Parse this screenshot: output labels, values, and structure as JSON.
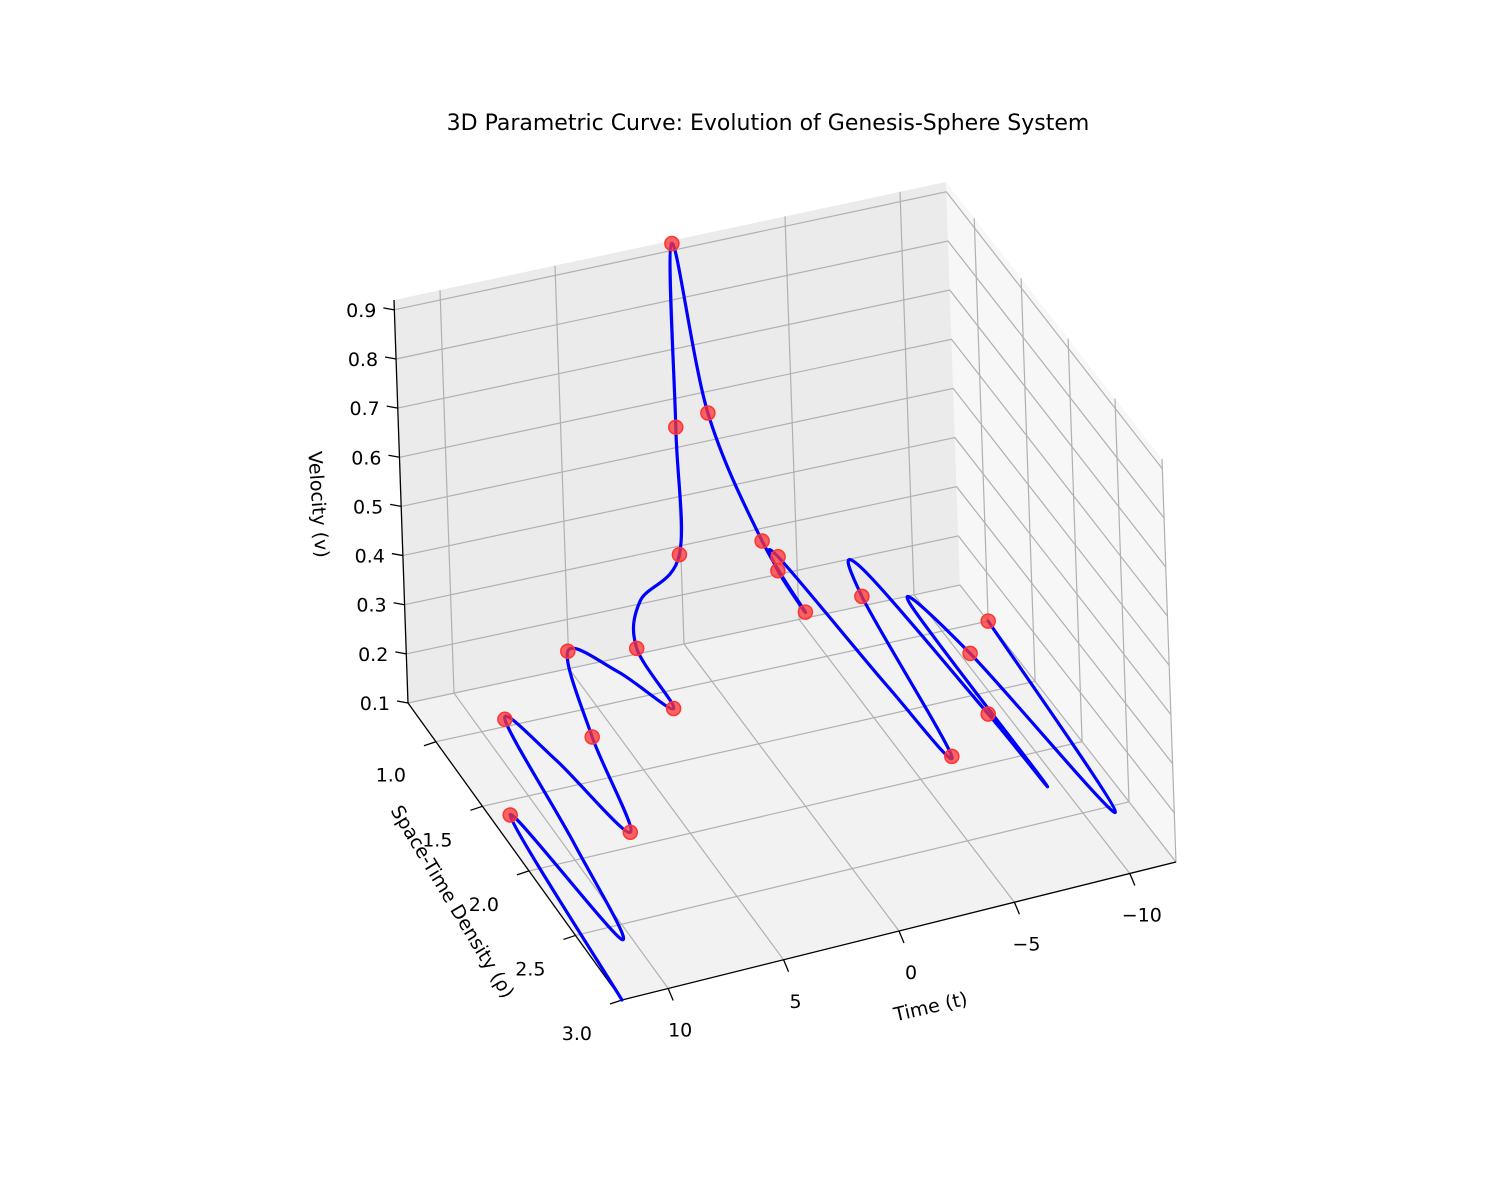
{
  "chart_data": {
    "type": "line3d",
    "title": "3D Parametric Curve: Evolution of Genesis-Sphere System",
    "xlabel": "Time (t)",
    "ylabel": "Space-Time Density (ρ)",
    "zlabel": "Velocity (v)",
    "xlim": [
      -12,
      12
    ],
    "ylim": [
      0.7,
      3.0
    ],
    "zlim": [
      0.1,
      0.92
    ],
    "x_ticks": [
      {
        "value": -10,
        "label": "−10"
      },
      {
        "value": -5,
        "label": "−5"
      },
      {
        "value": 0,
        "label": "0"
      },
      {
        "value": 5,
        "label": "5"
      },
      {
        "value": 10,
        "label": "10"
      }
    ],
    "y_ticks": [
      {
        "value": 1.0,
        "label": "1.0"
      },
      {
        "value": 1.5,
        "label": "1.5"
      },
      {
        "value": 2.0,
        "label": "2.0"
      },
      {
        "value": 2.5,
        "label": "2.5"
      },
      {
        "value": 3.0,
        "label": "3.0"
      }
    ],
    "z_ticks": [
      {
        "value": 0.1,
        "label": "0.1"
      },
      {
        "value": 0.2,
        "label": "0.2"
      },
      {
        "value": 0.3,
        "label": "0.3"
      },
      {
        "value": 0.4,
        "label": "0.4"
      },
      {
        "value": 0.5,
        "label": "0.5"
      },
      {
        "value": 0.6,
        "label": "0.6"
      },
      {
        "value": 0.7,
        "label": "0.7"
      },
      {
        "value": 0.8,
        "label": "0.8"
      },
      {
        "value": 0.9,
        "label": "0.9"
      }
    ],
    "grid": true,
    "series": [
      {
        "kind": "curve",
        "color": "#0000ff",
        "t": [
          -12.0,
          -11.2,
          -10.4,
          -9.6,
          -8.8,
          -8.0,
          -7.2,
          -6.4,
          -5.6,
          -4.8,
          -4.0,
          -3.2,
          -2.4,
          -1.6,
          -0.8,
          0.0,
          0.8,
          1.6,
          2.4,
          3.2,
          4.0,
          4.8,
          5.6,
          6.4,
          7.2,
          8.0,
          8.8,
          9.6,
          10.4,
          11.2,
          12.0
        ],
        "rho": [
          1.0,
          2.55,
          1.2,
          0.75,
          2.4,
          2.0,
          0.85,
          1.05,
          2.2,
          1.7,
          0.75,
          0.95,
          1.45,
          1.2,
          0.85,
          0.72,
          0.9,
          1.1,
          0.85,
          1.0,
          1.6,
          1.2,
          0.85,
          1.3,
          1.9,
          1.3,
          0.95,
          1.9,
          2.6,
          1.6,
          3.0
        ],
        "v": [
          0.1,
          0.1,
          0.1,
          0.1,
          0.15,
          0.2,
          0.22,
          0.22,
          0.19,
          0.22,
          0.25,
          0.28,
          0.33,
          0.42,
          0.6,
          0.92,
          0.6,
          0.4,
          0.25,
          0.2,
          0.24,
          0.22,
          0.18,
          0.13,
          0.1,
          0.1,
          0.1,
          0.1,
          0.1,
          0.1,
          0.1
        ]
      },
      {
        "kind": "markers",
        "color": "#ff3333",
        "t": [
          -12.0,
          -10.4,
          -8.0,
          -6.4,
          -5.6,
          -4.0,
          -3.2,
          -2.4,
          -1.6,
          -0.8,
          0.0,
          0.8,
          1.6,
          3.2,
          4.0,
          5.6,
          6.4,
          7.2,
          8.8,
          11.2
        ],
        "rho": [
          1.0,
          1.2,
          2.0,
          1.05,
          2.2,
          0.75,
          0.95,
          1.45,
          1.2,
          0.85,
          0.72,
          0.9,
          1.1,
          1.0,
          1.6,
          0.85,
          1.3,
          1.9,
          0.95,
          1.6
        ],
        "v": [
          0.1,
          0.1,
          0.2,
          0.22,
          0.19,
          0.25,
          0.28,
          0.33,
          0.42,
          0.6,
          0.92,
          0.6,
          0.4,
          0.2,
          0.24,
          0.18,
          0.13,
          0.1,
          0.1,
          0.1
        ]
      }
    ]
  }
}
